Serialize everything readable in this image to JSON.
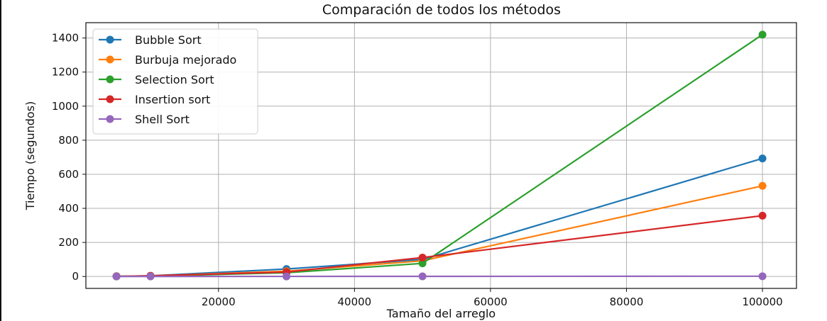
{
  "chart_data": {
    "type": "line",
    "title": "Comparación de todos los métodos",
    "xlabel": "Tamaño del arreglo",
    "ylabel": "Tiempo (segundos)",
    "xlim": [
      500,
      105000
    ],
    "ylim": [
      -70,
      1490
    ],
    "xticks": [
      20000,
      40000,
      60000,
      80000,
      100000
    ],
    "yticks": [
      0,
      200,
      400,
      600,
      800,
      1000,
      1200,
      1400
    ],
    "grid": true,
    "legend_position": "top-left",
    "x": [
      5000,
      10000,
      30000,
      50000,
      100000
    ],
    "series": [
      {
        "name": "Bubble Sort",
        "color": "#1f77b4",
        "values": [
          1,
          4,
          44,
          100,
          693
        ]
      },
      {
        "name": "Burbuja mejorado",
        "color": "#ff7f0e",
        "values": [
          1,
          3,
          31,
          92,
          532
        ]
      },
      {
        "name": "Selection Sort",
        "color": "#2ca02c",
        "values": [
          1,
          2,
          22,
          77,
          1420
        ]
      },
      {
        "name": "Insertion sort",
        "color": "#d62728",
        "values": [
          1,
          4,
          26,
          111,
          357
        ]
      },
      {
        "name": "Shell Sort",
        "color": "#9467bd",
        "values": [
          0.05,
          0.1,
          0.4,
          0.8,
          1.5
        ]
      }
    ]
  }
}
